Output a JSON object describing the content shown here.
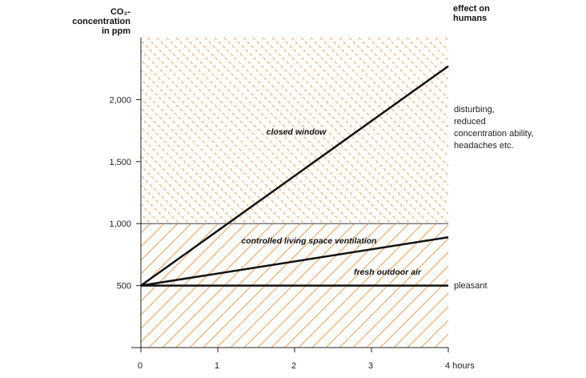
{
  "chart_data": {
    "type": "line",
    "y_header": [
      "CO₂-",
      "concentration",
      "in ppm"
    ],
    "right_header": [
      "effect on",
      "humans"
    ],
    "x_ticks": [
      {
        "value": 0,
        "label": "0"
      },
      {
        "value": 1,
        "label": "1"
      },
      {
        "value": 2,
        "label": "2"
      },
      {
        "value": 3,
        "label": "3"
      },
      {
        "value": 4,
        "label": "4 hours"
      }
    ],
    "y_ticks": [
      {
        "value": 500,
        "label": "500"
      },
      {
        "value": 1000,
        "label": "1,000"
      },
      {
        "value": 1500,
        "label": "1,500"
      },
      {
        "value": 2000,
        "label": "2,000"
      }
    ],
    "xlim": [
      0,
      4
    ],
    "ylim": [
      0,
      2500
    ],
    "zones": [
      {
        "from": 0,
        "to": 1000,
        "pattern": "dense-diagonal",
        "color": "#f0a050"
      },
      {
        "from": 1000,
        "to": 2500,
        "pattern": "dashed-diagonal",
        "color": "#f0a050"
      }
    ],
    "threshold": 1000,
    "series": [
      {
        "name": "closed window",
        "x": [
          0,
          4
        ],
        "y": [
          500,
          2270
        ]
      },
      {
        "name": "controlled living space ventilation",
        "x": [
          0,
          4
        ],
        "y": [
          500,
          890
        ]
      },
      {
        "name": "fresh outdoor air",
        "x": [
          0,
          4
        ],
        "y": [
          500,
          500
        ]
      }
    ],
    "effects": [
      {
        "lines": [
          "disturbing,",
          "reduced",
          "concentration ability,",
          "headaches etc."
        ]
      },
      {
        "lines": [
          "pleasant"
        ]
      }
    ],
    "colors": {
      "line": "#111111",
      "hatch": "#f0a050",
      "axis": "#222222"
    }
  }
}
